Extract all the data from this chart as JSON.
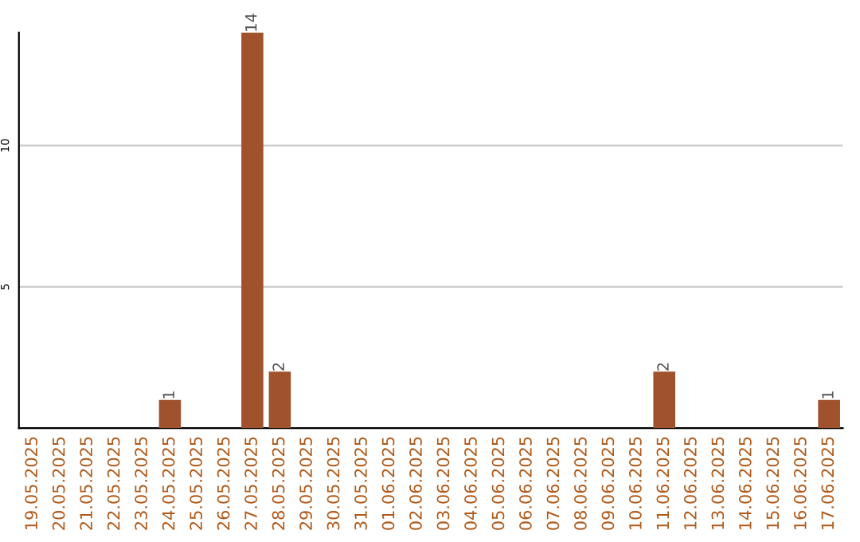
{
  "chart_data": {
    "type": "bar",
    "categories": [
      "19.05.2025",
      "20.05.2025",
      "21.05.2025",
      "22.05.2025",
      "23.05.2025",
      "24.05.2025",
      "25.05.2025",
      "26.05.2025",
      "27.05.2025",
      "28.05.2025",
      "29.05.2025",
      "30.05.2025",
      "31.05.2025",
      "01.06.2025",
      "02.06.2025",
      "03.06.2025",
      "04.06.2025",
      "05.06.2025",
      "06.06.2025",
      "07.06.2025",
      "08.06.2025",
      "09.06.2025",
      "10.06.2025",
      "11.06.2025",
      "12.06.2025",
      "13.06.2025",
      "14.06.2025",
      "15.06.2025",
      "16.06.2025",
      "17.06.2025"
    ],
    "values": [
      0,
      0,
      0,
      0,
      0,
      1,
      0,
      0,
      14,
      2,
      0,
      0,
      0,
      0,
      0,
      0,
      0,
      0,
      0,
      0,
      0,
      0,
      0,
      2,
      0,
      0,
      0,
      0,
      0,
      1
    ],
    "value_labels": [
      null,
      null,
      null,
      null,
      null,
      "1",
      null,
      null,
      "14",
      "2",
      null,
      null,
      null,
      null,
      null,
      null,
      null,
      null,
      null,
      null,
      null,
      null,
      null,
      "2",
      null,
      null,
      null,
      null,
      null,
      "1"
    ],
    "color": "#a0522d",
    "ylim": [
      0,
      14
    ],
    "yticks": [
      5,
      10
    ],
    "grid": "y",
    "legend": false
  }
}
